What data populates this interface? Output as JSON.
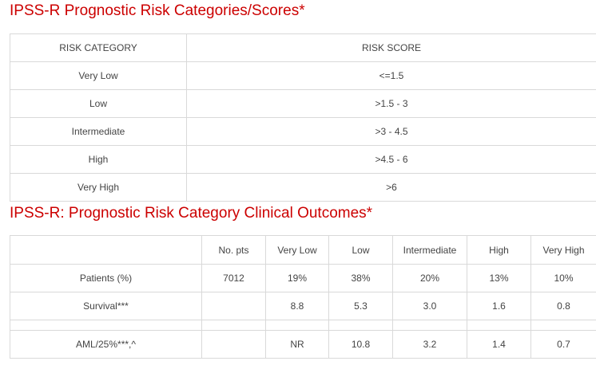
{
  "risk_section": {
    "title": "IPSS-R Prognostic Risk Categories/Scores*",
    "headers": [
      "RISK CATEGORY",
      "RISK SCORE"
    ],
    "rows": [
      [
        "Very Low",
        "<=1.5"
      ],
      [
        "Low",
        ">1.5 - 3"
      ],
      [
        "Intermediate",
        ">3 - 4.5"
      ],
      [
        "High",
        ">4.5 - 6"
      ],
      [
        "Very High",
        ">6"
      ]
    ]
  },
  "outcomes_section": {
    "title": "IPSS-R: Prognostic Risk Category Clinical Outcomes*",
    "headers": [
      "",
      "No. pts",
      "Very Low",
      "Low",
      "Intermediate",
      "High",
      "Very High"
    ],
    "rows": [
      [
        "Patients (%)",
        "7012",
        "19%",
        "38%",
        "20%",
        "13%",
        "10%"
      ],
      [
        "Survival***",
        "",
        "8.8",
        "5.3",
        "3.0",
        "1.6",
        "0.8"
      ],
      [
        "",
        "",
        "",
        "",
        "",
        "",
        ""
      ],
      [
        "AML/25%***,^",
        "",
        "NR",
        "10.8",
        "3.2",
        "1.4",
        "0.7"
      ]
    ]
  }
}
